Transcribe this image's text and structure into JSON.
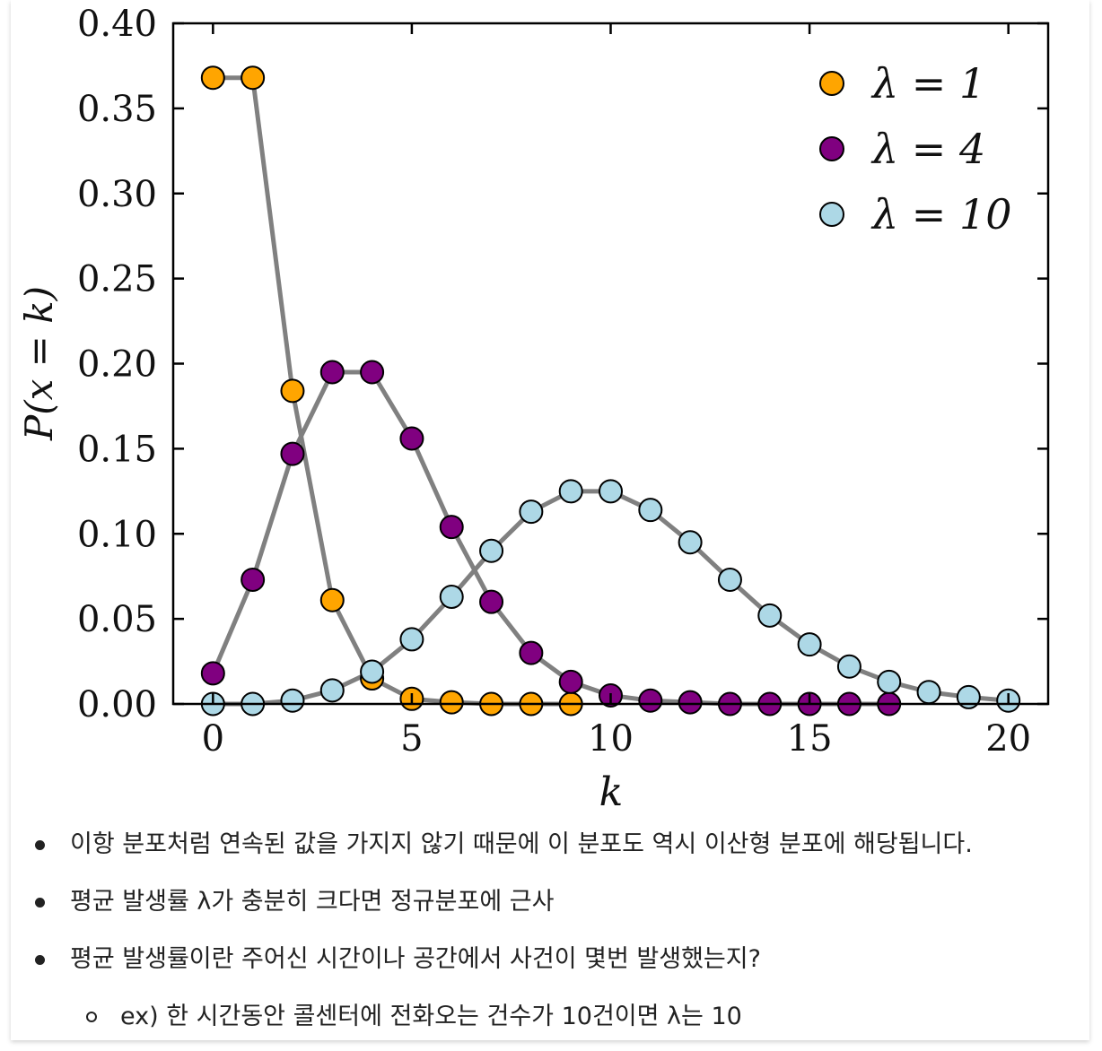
{
  "chart_data": {
    "type": "line",
    "title": "",
    "xlabel": "k",
    "ylabel": "P(x = k)",
    "xlim": [
      -1,
      21
    ],
    "ylim": [
      0,
      0.4
    ],
    "x_ticks": [
      0,
      5,
      10,
      15,
      20
    ],
    "y_ticks": [
      0.0,
      0.05,
      0.1,
      0.15,
      0.2,
      0.25,
      0.3,
      0.35,
      0.4
    ],
    "x_tick_labels": [
      "0",
      "5",
      "10",
      "15",
      "20"
    ],
    "y_tick_labels": [
      "0.00",
      "0.05",
      "0.10",
      "0.15",
      "0.20",
      "0.25",
      "0.30",
      "0.35",
      "0.40"
    ],
    "grid": false,
    "legend_position": "top-right",
    "line_color": "#808080",
    "series": [
      {
        "name": "λ = 1",
        "color": "#ffa500",
        "x": [
          0,
          1,
          2,
          3,
          4,
          5,
          6,
          7,
          8,
          9
        ],
        "y": [
          0.368,
          0.368,
          0.184,
          0.061,
          0.015,
          0.003,
          0.001,
          0.0,
          0.0,
          0.0
        ]
      },
      {
        "name": "λ = 4",
        "color": "#800080",
        "x": [
          0,
          1,
          2,
          3,
          4,
          5,
          6,
          7,
          8,
          9,
          10,
          11,
          12,
          13,
          14,
          15,
          16,
          17
        ],
        "y": [
          0.018,
          0.073,
          0.147,
          0.195,
          0.195,
          0.156,
          0.104,
          0.06,
          0.03,
          0.013,
          0.005,
          0.002,
          0.001,
          0.0,
          0.0,
          0.0,
          0.0,
          0.0
        ]
      },
      {
        "name": "λ = 10",
        "color": "#add8e6",
        "x": [
          0,
          1,
          2,
          3,
          4,
          5,
          6,
          7,
          8,
          9,
          10,
          11,
          12,
          13,
          14,
          15,
          16,
          17,
          18,
          19,
          20
        ],
        "y": [
          0.0,
          0.0,
          0.002,
          0.008,
          0.019,
          0.038,
          0.063,
          0.09,
          0.113,
          0.125,
          0.125,
          0.114,
          0.095,
          0.073,
          0.052,
          0.035,
          0.022,
          0.013,
          0.007,
          0.004,
          0.002
        ]
      }
    ]
  },
  "notes": {
    "bullets": [
      "이항 분포처럼 연속된 값을 가지지 않기 때문에 이 분포도 역시 이산형 분포에 해당됩니다.",
      "평균 발생률 λ가 충분히 크다면 정규분포에 근사",
      "평균 발생률이란 주어신 시간이나 공간에서 사건이 몇번 발생했는지?"
    ],
    "sub_bullet": "ex) 한 시간동안 콜센터에 전화오는 건수가 10건이면 λ는 10"
  }
}
